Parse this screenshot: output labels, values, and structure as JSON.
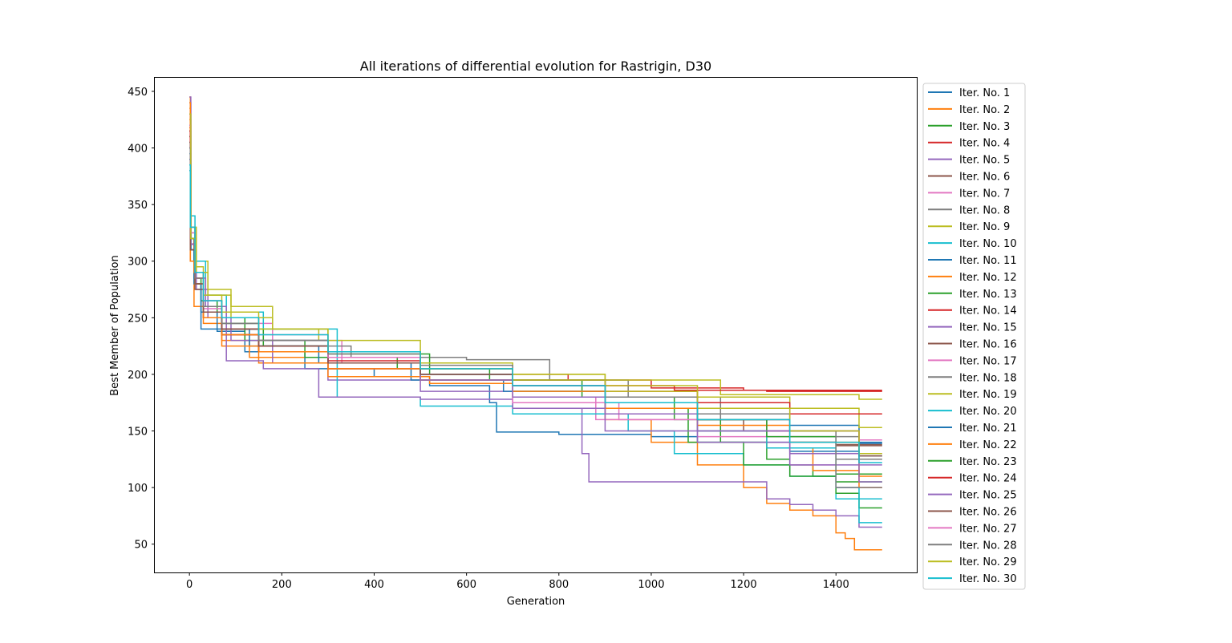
{
  "chart_data": {
    "type": "line",
    "title": "All iterations of differential evolution for Rastrigin, D30",
    "xlabel": "Generation",
    "ylabel": "Best Member of Population",
    "xlim": [
      -75,
      1575
    ],
    "ylim": [
      25,
      462
    ],
    "xticks": [
      0,
      200,
      400,
      600,
      800,
      1000,
      1200,
      1400
    ],
    "yticks": [
      50,
      100,
      150,
      200,
      250,
      300,
      350,
      400,
      450
    ],
    "grid": false,
    "legend_position": "outside-right",
    "line_style": "step",
    "series": [
      {
        "name": "Iter. No. 1",
        "color": "#1f77b4",
        "x": [
          0,
          3,
          12,
          25,
          60,
          120,
          250,
          400,
          520,
          650,
          665,
          800,
          1000,
          1100,
          1300,
          1450,
          1500
        ],
        "y": [
          380,
          320,
          280,
          240,
          238,
          220,
          205,
          198,
          190,
          175,
          149,
          147,
          145,
          140,
          132,
          128,
          128
        ]
      },
      {
        "name": "Iter. No. 2",
        "color": "#ff7f0e",
        "x": [
          0,
          2,
          10,
          30,
          70,
          130,
          300,
          500,
          700,
          900,
          1000,
          1100,
          1200,
          1250,
          1300,
          1350,
          1400,
          1420,
          1440,
          1500
        ],
        "y": [
          445,
          300,
          260,
          245,
          230,
          215,
          205,
          195,
          180,
          160,
          140,
          120,
          100,
          86,
          80,
          75,
          60,
          55,
          45,
          45
        ]
      },
      {
        "name": "Iter. No. 3",
        "color": "#2ca02c",
        "x": [
          0,
          3,
          10,
          25,
          60,
          120,
          250,
          450,
          650,
          850,
          1050,
          1150,
          1250,
          1300,
          1350,
          1400,
          1500
        ],
        "y": [
          420,
          310,
          285,
          265,
          250,
          230,
          215,
          205,
          195,
          180,
          160,
          140,
          125,
          120,
          110,
          105,
          105
        ]
      },
      {
        "name": "Iter. No. 4",
        "color": "#d62728",
        "x": [
          0,
          2,
          12,
          30,
          70,
          150,
          300,
          500,
          700,
          820,
          1000,
          1200,
          1500
        ],
        "y": [
          410,
          320,
          280,
          250,
          235,
          220,
          210,
          205,
          200,
          195,
          188,
          186,
          186
        ]
      },
      {
        "name": "Iter. No. 5",
        "color": "#9467bd",
        "x": [
          0,
          3,
          15,
          40,
          90,
          180,
          300,
          500,
          700,
          850,
          865,
          1150,
          1250,
          1300,
          1350,
          1400,
          1450,
          1500
        ],
        "y": [
          440,
          310,
          275,
          250,
          230,
          210,
          195,
          185,
          170,
          130,
          105,
          105,
          90,
          85,
          80,
          75,
          65,
          65
        ]
      },
      {
        "name": "Iter. No. 6",
        "color": "#8c564b",
        "x": [
          0,
          2,
          10,
          30,
          70,
          150,
          300,
          500,
          700,
          900,
          1100,
          1200,
          1300,
          1400,
          1500
        ],
        "y": [
          400,
          320,
          285,
          255,
          240,
          220,
          205,
          195,
          185,
          170,
          160,
          150,
          140,
          138,
          138
        ]
      },
      {
        "name": "Iter. No. 7",
        "color": "#e377c2",
        "x": [
          0,
          3,
          12,
          30,
          80,
          180,
          330,
          500,
          700,
          880,
          1100,
          1300,
          1400,
          1500
        ],
        "y": [
          390,
          310,
          280,
          260,
          245,
          230,
          210,
          195,
          180,
          160,
          145,
          120,
          100,
          100
        ]
      },
      {
        "name": "Iter. No. 8",
        "color": "#7f7f7f",
        "x": [
          0,
          2,
          12,
          30,
          70,
          150,
          350,
          600,
          780,
          950,
          1150,
          1300,
          1400,
          1500
        ],
        "y": [
          430,
          330,
          285,
          255,
          240,
          225,
          215,
          213,
          195,
          180,
          160,
          140,
          125,
          125
        ]
      },
      {
        "name": "Iter. No. 9",
        "color": "#bcbd22",
        "x": [
          0,
          3,
          15,
          40,
          90,
          180,
          280,
          500,
          700,
          900,
          1150,
          1450,
          1500
        ],
        "y": [
          425,
          330,
          300,
          275,
          260,
          240,
          230,
          205,
          200,
          195,
          182,
          178,
          178
        ]
      },
      {
        "name": "Iter. No. 10",
        "color": "#17becf",
        "x": [
          0,
          2,
          12,
          35,
          80,
          160,
          320,
          500,
          700,
          950,
          1050,
          1200,
          1300,
          1400,
          1500
        ],
        "y": [
          385,
          340,
          300,
          270,
          255,
          240,
          180,
          172,
          165,
          150,
          130,
          120,
          110,
          90,
          90
        ]
      },
      {
        "name": "Iter. No. 11",
        "color": "#1f77b4",
        "x": [
          0,
          3,
          10,
          25,
          60,
          130,
          280,
          480,
          680,
          900,
          1100,
          1300,
          1450,
          1500
        ],
        "y": [
          395,
          310,
          280,
          255,
          240,
          225,
          210,
          195,
          185,
          175,
          165,
          155,
          140,
          140
        ]
      },
      {
        "name": "Iter. No. 12",
        "color": "#ff7f0e",
        "x": [
          0,
          2,
          10,
          30,
          70,
          150,
          300,
          520,
          700,
          900,
          1100,
          1250,
          1350,
          1450,
          1500
        ],
        "y": [
          435,
          300,
          290,
          250,
          225,
          210,
          198,
          192,
          180,
          165,
          150,
          135,
          115,
          100,
          100
        ]
      },
      {
        "name": "Iter. No. 13",
        "color": "#2ca02c",
        "x": [
          0,
          3,
          12,
          30,
          70,
          160,
          300,
          520,
          700,
          900,
          1080,
          1200,
          1300,
          1400,
          1450,
          1500
        ],
        "y": [
          415,
          315,
          290,
          265,
          240,
          225,
          218,
          200,
          190,
          170,
          140,
          120,
          110,
          95,
          82,
          82
        ]
      },
      {
        "name": "Iter. No. 14",
        "color": "#d62728",
        "x": [
          0,
          2,
          12,
          30,
          70,
          150,
          300,
          500,
          700,
          900,
          1050,
          1250,
          1500
        ],
        "y": [
          418,
          315,
          280,
          255,
          235,
          220,
          210,
          200,
          195,
          190,
          186,
          185,
          185
        ]
      },
      {
        "name": "Iter. No. 15",
        "color": "#9467bd",
        "x": [
          0,
          3,
          12,
          35,
          80,
          160,
          280,
          500,
          700,
          900,
          1100,
          1300,
          1500
        ],
        "y": [
          445,
          320,
          285,
          260,
          212,
          205,
          180,
          178,
          170,
          150,
          140,
          120,
          120
        ]
      },
      {
        "name": "Iter. No. 16",
        "color": "#8c564b",
        "x": [
          0,
          2,
          12,
          30,
          70,
          150,
          300,
          500,
          700,
          900,
          1100,
          1250,
          1400,
          1500
        ],
        "y": [
          405,
          310,
          275,
          250,
          235,
          220,
          205,
          200,
          190,
          175,
          160,
          150,
          137,
          137
        ]
      },
      {
        "name": "Iter. No. 17",
        "color": "#e377c2",
        "x": [
          0,
          3,
          12,
          30,
          70,
          150,
          300,
          500,
          700,
          930,
          1100,
          1300,
          1400,
          1500
        ],
        "y": [
          410,
          320,
          285,
          258,
          240,
          230,
          205,
          195,
          175,
          160,
          150,
          140,
          130,
          130
        ]
      },
      {
        "name": "Iter. No. 18",
        "color": "#7f7f7f",
        "x": [
          0,
          2,
          12,
          30,
          70,
          150,
          300,
          500,
          700,
          900,
          1100,
          1300,
          1450,
          1500
        ],
        "y": [
          400,
          325,
          290,
          260,
          245,
          230,
          215,
          205,
          195,
          180,
          160,
          145,
          125,
          125
        ]
      },
      {
        "name": "Iter. No. 19",
        "color": "#bcbd22",
        "x": [
          0,
          3,
          15,
          40,
          90,
          180,
          300,
          500,
          700,
          900,
          1100,
          1300,
          1450,
          1500
        ],
        "y": [
          420,
          320,
          290,
          270,
          250,
          240,
          220,
          210,
          200,
          190,
          180,
          170,
          153,
          153
        ]
      },
      {
        "name": "Iter. No. 20",
        "color": "#17becf",
        "x": [
          0,
          2,
          12,
          30,
          70,
          150,
          300,
          500,
          700,
          900,
          1100,
          1250,
          1400,
          1450,
          1500
        ],
        "y": [
          380,
          320,
          280,
          255,
          240,
          225,
          210,
          195,
          185,
          170,
          150,
          135,
          100,
          69,
          69
        ]
      },
      {
        "name": "Iter. No. 21",
        "color": "#1f77b4",
        "x": [
          0,
          3,
          12,
          30,
          70,
          150,
          300,
          500,
          700,
          900,
          1100,
          1300,
          1450,
          1500
        ],
        "y": [
          390,
          310,
          280,
          255,
          240,
          225,
          210,
          200,
          190,
          175,
          165,
          150,
          139,
          139
        ]
      },
      {
        "name": "Iter. No. 22",
        "color": "#ff7f0e",
        "x": [
          0,
          2,
          12,
          30,
          70,
          150,
          300,
          500,
          700,
          900,
          1100,
          1300,
          1450,
          1500
        ],
        "y": [
          440,
          300,
          280,
          250,
          235,
          220,
          205,
          195,
          185,
          170,
          155,
          140,
          110,
          110
        ]
      },
      {
        "name": "Iter. No. 23",
        "color": "#2ca02c",
        "x": [
          0,
          3,
          12,
          30,
          70,
          150,
          300,
          500,
          700,
          900,
          1100,
          1250,
          1400,
          1500
        ],
        "y": [
          410,
          320,
          290,
          260,
          245,
          230,
          215,
          205,
          195,
          175,
          160,
          145,
          112,
          112
        ]
      },
      {
        "name": "Iter. No. 24",
        "color": "#d62728",
        "x": [
          0,
          2,
          12,
          30,
          70,
          150,
          300,
          500,
          700,
          900,
          1100,
          1300,
          1500
        ],
        "y": [
          415,
          315,
          285,
          260,
          240,
          225,
          212,
          205,
          195,
          185,
          175,
          165,
          165
        ]
      },
      {
        "name": "Iter. No. 25",
        "color": "#9467bd",
        "x": [
          0,
          3,
          12,
          30,
          70,
          150,
          300,
          500,
          700,
          900,
          1100,
          1300,
          1450,
          1500
        ],
        "y": [
          430,
          315,
          290,
          265,
          250,
          230,
          210,
          195,
          180,
          165,
          150,
          130,
          105,
          105
        ]
      },
      {
        "name": "Iter. No. 26",
        "color": "#8c564b",
        "x": [
          0,
          2,
          12,
          30,
          70,
          150,
          300,
          500,
          700,
          900,
          1100,
          1300,
          1450,
          1500
        ],
        "y": [
          405,
          310,
          280,
          255,
          240,
          225,
          210,
          200,
          190,
          175,
          160,
          150,
          128,
          128
        ]
      },
      {
        "name": "Iter. No. 27",
        "color": "#e377c2",
        "x": [
          0,
          3,
          12,
          30,
          70,
          150,
          300,
          500,
          700,
          900,
          1100,
          1300,
          1450,
          1500
        ],
        "y": [
          420,
          325,
          290,
          265,
          250,
          235,
          215,
          205,
          190,
          175,
          165,
          150,
          142,
          142
        ]
      },
      {
        "name": "Iter. No. 28",
        "color": "#7f7f7f",
        "x": [
          0,
          2,
          12,
          30,
          70,
          150,
          300,
          500,
          700,
          900,
          1100,
          1300,
          1400,
          1500
        ],
        "y": [
          400,
          330,
          285,
          260,
          245,
          230,
          218,
          208,
          195,
          180,
          165,
          150,
          100,
          100
        ]
      },
      {
        "name": "Iter. No. 29",
        "color": "#bcbd22",
        "x": [
          0,
          3,
          12,
          30,
          70,
          150,
          300,
          500,
          700,
          900,
          1100,
          1300,
          1450,
          1500
        ],
        "y": [
          430,
          320,
          295,
          270,
          255,
          240,
          220,
          205,
          195,
          185,
          170,
          150,
          130,
          130
        ]
      },
      {
        "name": "Iter. No. 30",
        "color": "#17becf",
        "x": [
          0,
          2,
          12,
          30,
          70,
          150,
          300,
          500,
          700,
          900,
          1100,
          1300,
          1450,
          1500
        ],
        "y": [
          385,
          330,
          290,
          265,
          250,
          235,
          220,
          205,
          190,
          175,
          160,
          140,
          122,
          122
        ]
      }
    ]
  }
}
